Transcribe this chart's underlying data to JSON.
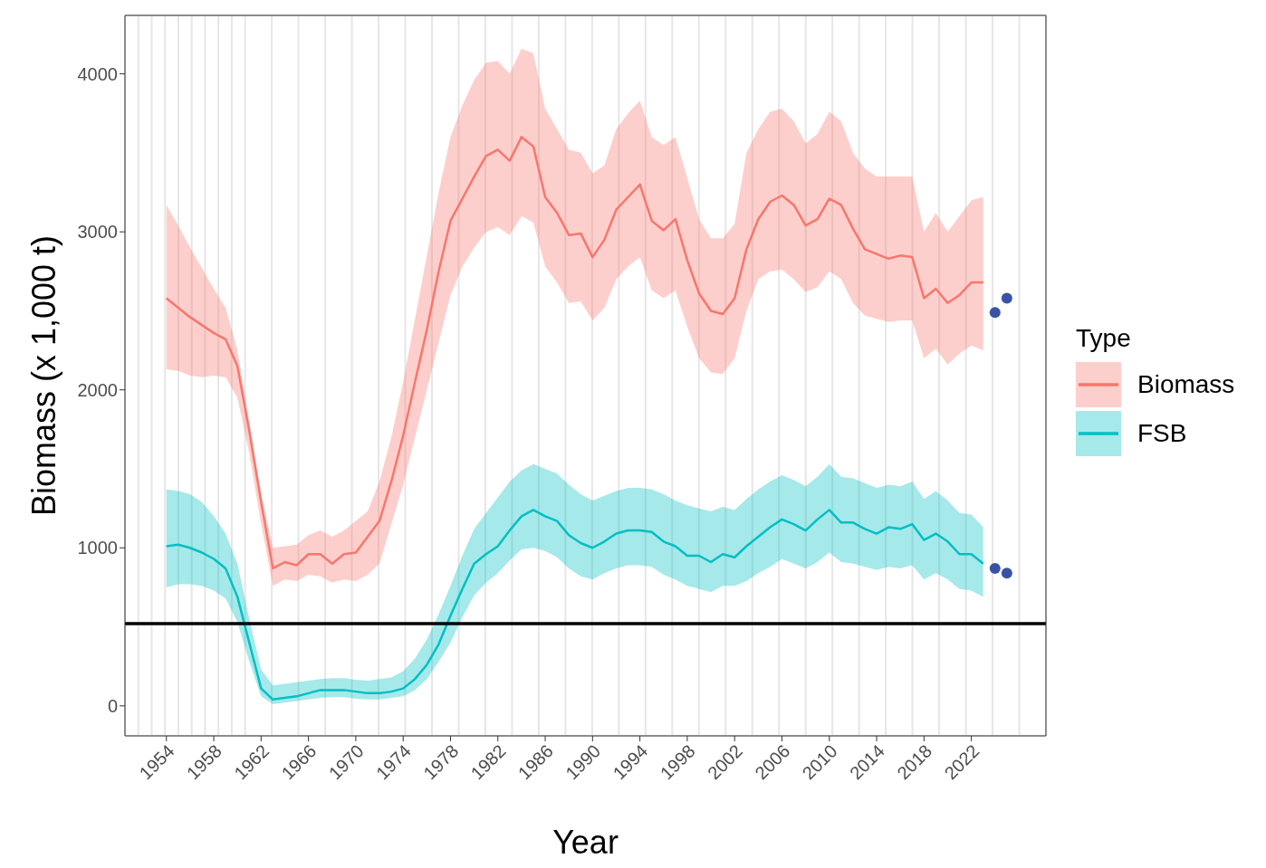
{
  "chart_data": {
    "type": "line",
    "xlabel": "Year",
    "ylabel": "Biomass (x 1,000 t)",
    "legend_title": "Type",
    "legend": "right",
    "grid": true,
    "marker": "none",
    "line_style": "solid",
    "xlim": [
      1950.5,
      2028.3
    ],
    "xticks": [
      1954,
      1958,
      1962,
      1966,
      1970,
      1974,
      1978,
      1982,
      1986,
      1990,
      1994,
      1998,
      2002,
      2006,
      2010,
      2014,
      2018,
      2022
    ],
    "ylim": [
      -190,
      4370
    ],
    "yticks": [
      0,
      1000,
      2000,
      3000,
      4000
    ],
    "ref_lines": [
      {
        "axis": "y",
        "value": 520,
        "color": "#000000"
      }
    ],
    "series": [
      {
        "name": "Biomass",
        "color": "#f8766d",
        "x": [
          1954,
          1955,
          1956,
          1957,
          1958,
          1959,
          1960,
          1961,
          1962,
          1963,
          1964,
          1965,
          1966,
          1967,
          1968,
          1969,
          1970,
          1971,
          1972,
          1973,
          1974,
          1975,
          1976,
          1977,
          1978,
          1979,
          1980,
          1981,
          1982,
          1983,
          1984,
          1985,
          1986,
          1987,
          1988,
          1989,
          1990,
          1991,
          1992,
          1993,
          1994,
          1995,
          1996,
          1997,
          1998,
          1999,
          2000,
          2001,
          2002,
          2003,
          2004,
          2005,
          2006,
          2007,
          2008,
          2009,
          2010,
          2011,
          2012,
          2013,
          2014,
          2015,
          2016,
          2017,
          2018,
          2019,
          2020,
          2021,
          2022,
          2023
        ],
        "values": [
          2580,
          2520,
          2460,
          2410,
          2360,
          2320,
          2150,
          1740,
          1290,
          870,
          910,
          890,
          960,
          960,
          900,
          960,
          970,
          1070,
          1170,
          1420,
          1710,
          2050,
          2380,
          2750,
          3070,
          3210,
          3350,
          3480,
          3520,
          3450,
          3600,
          3540,
          3220,
          3120,
          2980,
          2990,
          2840,
          2950,
          3140,
          3220,
          3300,
          3070,
          3010,
          3080,
          2820,
          2610,
          2500,
          2480,
          2580,
          2890,
          3080,
          3190,
          3230,
          3170,
          3040,
          3080,
          3210,
          3170,
          3020,
          2890,
          2860,
          2830,
          2850,
          2840,
          2580,
          2640,
          2550,
          2600,
          2680,
          2680
        ],
        "lower": [
          2130,
          2120,
          2090,
          2080,
          2090,
          2080,
          1950,
          1600,
          1150,
          760,
          800,
          790,
          830,
          820,
          780,
          800,
          790,
          830,
          900,
          1150,
          1400,
          1700,
          2000,
          2300,
          2600,
          2780,
          2900,
          3000,
          3030,
          2980,
          3100,
          3060,
          2780,
          2680,
          2550,
          2560,
          2440,
          2520,
          2700,
          2780,
          2840,
          2630,
          2580,
          2630,
          2400,
          2200,
          2110,
          2100,
          2200,
          2500,
          2700,
          2750,
          2760,
          2700,
          2620,
          2650,
          2750,
          2700,
          2550,
          2470,
          2450,
          2430,
          2440,
          2440,
          2200,
          2260,
          2160,
          2230,
          2280,
          2250
        ],
        "upper": [
          3170,
          3040,
          2900,
          2770,
          2640,
          2520,
          2250,
          1800,
          1350,
          1000,
          1010,
          1020,
          1080,
          1110,
          1070,
          1110,
          1170,
          1230,
          1420,
          1700,
          2050,
          2450,
          2850,
          3250,
          3600,
          3800,
          3960,
          4070,
          4080,
          4000,
          4160,
          4130,
          3780,
          3650,
          3520,
          3500,
          3370,
          3420,
          3650,
          3750,
          3830,
          3600,
          3550,
          3600,
          3340,
          3080,
          2960,
          2960,
          3050,
          3500,
          3650,
          3760,
          3780,
          3700,
          3560,
          3620,
          3760,
          3700,
          3500,
          3400,
          3350,
          3350,
          3350,
          3350,
          3000,
          3120,
          3000,
          3100,
          3200,
          3220
        ]
      },
      {
        "name": "FSB",
        "color": "#00bfc4",
        "x": [
          1954,
          1955,
          1956,
          1957,
          1958,
          1959,
          1960,
          1961,
          1962,
          1963,
          1964,
          1965,
          1966,
          1967,
          1968,
          1969,
          1970,
          1971,
          1972,
          1973,
          1974,
          1975,
          1976,
          1977,
          1978,
          1979,
          1980,
          1981,
          1982,
          1983,
          1984,
          1985,
          1986,
          1987,
          1988,
          1989,
          1990,
          1991,
          1992,
          1993,
          1994,
          1995,
          1996,
          1997,
          1998,
          1999,
          2000,
          2001,
          2002,
          2003,
          2004,
          2005,
          2006,
          2007,
          2008,
          2009,
          2010,
          2011,
          2012,
          2013,
          2014,
          2015,
          2016,
          2017,
          2018,
          2019,
          2020,
          2021,
          2022,
          2023
        ],
        "values": [
          1010,
          1020,
          1000,
          970,
          930,
          870,
          690,
          400,
          110,
          40,
          50,
          60,
          80,
          100,
          100,
          100,
          90,
          80,
          80,
          90,
          110,
          170,
          260,
          390,
          570,
          740,
          900,
          960,
          1010,
          1110,
          1200,
          1240,
          1200,
          1170,
          1080,
          1030,
          1000,
          1040,
          1090,
          1110,
          1110,
          1100,
          1040,
          1010,
          950,
          950,
          910,
          960,
          940,
          1010,
          1070,
          1130,
          1180,
          1150,
          1110,
          1180,
          1240,
          1160,
          1160,
          1120,
          1090,
          1130,
          1120,
          1150,
          1050,
          1090,
          1040,
          960,
          960,
          900
        ],
        "lower": [
          750,
          770,
          770,
          760,
          730,
          680,
          530,
          280,
          60,
          10,
          20,
          30,
          40,
          50,
          55,
          55,
          45,
          40,
          40,
          50,
          60,
          100,
          170,
          280,
          400,
          560,
          700,
          780,
          840,
          920,
          990,
          1000,
          980,
          940,
          870,
          820,
          800,
          840,
          870,
          890,
          890,
          880,
          830,
          800,
          760,
          740,
          720,
          760,
          760,
          790,
          840,
          880,
          930,
          900,
          870,
          910,
          970,
          910,
          900,
          880,
          860,
          880,
          870,
          890,
          800,
          840,
          800,
          740,
          730,
          690
        ],
        "upper": [
          1370,
          1360,
          1340,
          1290,
          1200,
          1090,
          900,
          550,
          230,
          130,
          140,
          150,
          160,
          170,
          175,
          175,
          165,
          160,
          170,
          180,
          220,
          300,
          420,
          580,
          760,
          950,
          1120,
          1220,
          1320,
          1420,
          1490,
          1530,
          1500,
          1470,
          1400,
          1340,
          1300,
          1330,
          1360,
          1380,
          1380,
          1370,
          1340,
          1300,
          1270,
          1250,
          1230,
          1260,
          1240,
          1310,
          1370,
          1420,
          1460,
          1430,
          1390,
          1450,
          1530,
          1450,
          1440,
          1410,
          1380,
          1400,
          1390,
          1420,
          1310,
          1360,
          1300,
          1220,
          1210,
          1130
        ]
      },
      {
        "type": "scatter",
        "marker": "circle",
        "color": "#3953a4",
        "x": [
          2024,
          2025,
          2024,
          2025
        ],
        "values": [
          2490,
          2580,
          870,
          840
        ]
      }
    ]
  }
}
